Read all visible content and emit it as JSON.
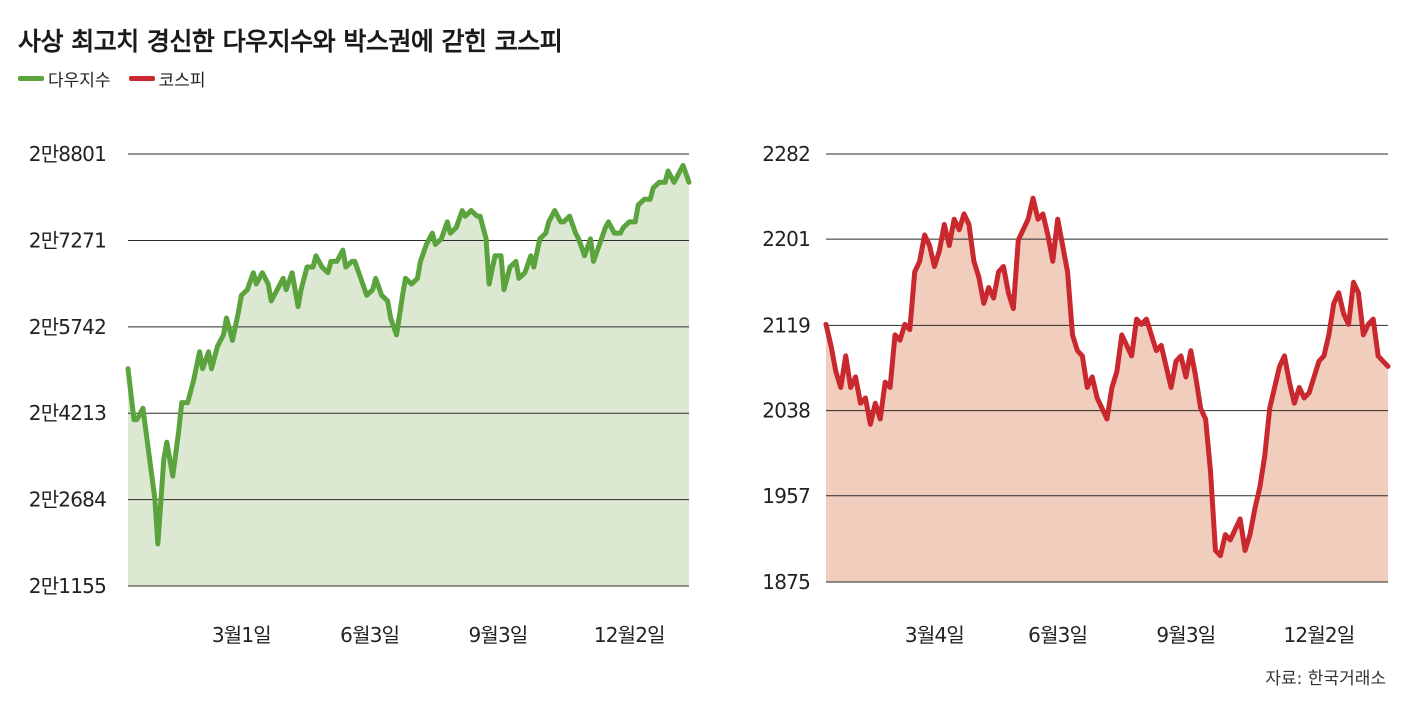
{
  "title": "사상 최고치 경신한 다우지수와 박스권에 갇힌 코스피",
  "legend": [
    {
      "label": "다우지수",
      "color": "#5aa33d"
    },
    {
      "label": "코스피",
      "color": "#c8282e"
    }
  ],
  "source": "자료: 한국거래소",
  "chart_data": [
    {
      "type": "area",
      "series": [
        {
          "name": "다우지수",
          "color": "#5aa33d",
          "fill": "#dde8d3",
          "values": [
            25000,
            24100,
            24100,
            24300,
            23500,
            22700,
            21900,
            23400,
            23700,
            23100,
            23900,
            24400,
            24400,
            24800,
            25300,
            25000,
            25300,
            25000,
            25400,
            25600,
            25900,
            25500,
            26000,
            26300,
            26400,
            26700,
            26500,
            26700,
            26500,
            26200,
            26400,
            26600,
            26400,
            26700,
            26100,
            26400,
            26800,
            26800,
            27000,
            26800,
            26700,
            26900,
            26900,
            27100,
            26800,
            26900,
            26900,
            26600,
            26300,
            26400,
            26600,
            26300,
            26200,
            25900,
            25600,
            26300,
            26600,
            26500,
            26600,
            26900,
            27200,
            27400,
            27200,
            27300,
            27600,
            27400,
            27500,
            27800,
            27700,
            27800,
            27700,
            27700,
            27300,
            26500,
            27000,
            27000,
            26400,
            26800,
            26900,
            26600,
            26700,
            27000,
            26800,
            27300,
            27400,
            27600,
            27800,
            27600,
            27600,
            27700,
            27400,
            27300,
            27000,
            27300,
            26900,
            27200,
            27500,
            27600,
            27400,
            27400,
            27500,
            27600,
            27600,
            27900,
            28000,
            28000,
            28200,
            28300,
            28300,
            28500,
            28300,
            28500,
            28600,
            28300
          ],
          "x": [
            0,
            2,
            3,
            5,
            7,
            9,
            10,
            12,
            13,
            15,
            17,
            18,
            20,
            22,
            24,
            25,
            27,
            28,
            30,
            32,
            33,
            35,
            37,
            38,
            40,
            42,
            43,
            45,
            47,
            48,
            50,
            52,
            53,
            55,
            57,
            58,
            60,
            62,
            63,
            65,
            67,
            68,
            70,
            72,
            73,
            75,
            76,
            78,
            80,
            82,
            83,
            85,
            87,
            88,
            90,
            92,
            93,
            95,
            97,
            98,
            100,
            102,
            103,
            105,
            107,
            108,
            110,
            112,
            113,
            115,
            117,
            118,
            120,
            121,
            123,
            125,
            126,
            128,
            130,
            131,
            133,
            135,
            136,
            138,
            140,
            141,
            143,
            145,
            146,
            148,
            150,
            151,
            153,
            155,
            156,
            158,
            160,
            161,
            163,
            165,
            166,
            168,
            170,
            171,
            173,
            175,
            176,
            178,
            180,
            181,
            183,
            185,
            186,
            188
          ]
        }
      ],
      "y_ticks": [
        "2만8801",
        "2만7271",
        "2만5742",
        "2만4213",
        "2만2684",
        "2만1155"
      ],
      "y_values": [
        28801,
        27271,
        25742,
        24213,
        22684,
        21155
      ],
      "ylim": [
        21155,
        28801
      ],
      "x_ticks": [
        "3월1일",
        "6월3일",
        "9월3일",
        "12월2일"
      ],
      "x_tick_positions": [
        38,
        81,
        124,
        168
      ],
      "xlim": [
        0,
        188
      ],
      "grid": true
    },
    {
      "type": "area",
      "series": [
        {
          "name": "코스피",
          "color": "#c8282e",
          "fill": "#f1cdbe",
          "values": [
            2120,
            2100,
            2075,
            2060,
            2090,
            2060,
            2070,
            2045,
            2050,
            2025,
            2045,
            2030,
            2065,
            2060,
            2110,
            2105,
            2120,
            2115,
            2170,
            2180,
            2205,
            2195,
            2175,
            2190,
            2215,
            2195,
            2220,
            2210,
            2225,
            2215,
            2180,
            2165,
            2140,
            2155,
            2145,
            2170,
            2175,
            2150,
            2135,
            2200,
            2210,
            2220,
            2240,
            2220,
            2225,
            2205,
            2180,
            2220,
            2195,
            2170,
            2110,
            2095,
            2090,
            2060,
            2070,
            2050,
            2040,
            2030,
            2060,
            2075,
            2110,
            2100,
            2090,
            2125,
            2120,
            2125,
            2110,
            2095,
            2100,
            2080,
            2060,
            2085,
            2090,
            2070,
            2095,
            2070,
            2040,
            2030,
            1980,
            1905,
            1900,
            1920,
            1915,
            1925,
            1935,
            1905,
            1920,
            1945,
            1965,
            1995,
            2040,
            2060,
            2080,
            2090,
            2065,
            2045,
            2060,
            2050,
            2055,
            2070,
            2085,
            2090,
            2110,
            2140,
            2150,
            2130,
            2120,
            2160,
            2150,
            2110,
            2120,
            2125,
            2090,
            2085,
            2080
          ],
          "x": [
            0,
            1,
            2,
            3,
            4,
            5,
            6,
            7,
            8,
            9,
            10,
            11,
            12,
            13,
            14,
            15,
            16,
            17,
            18,
            19,
            20,
            21,
            22,
            23,
            24,
            25,
            26,
            27,
            28,
            29,
            30,
            31,
            32,
            33,
            34,
            35,
            36,
            37,
            38,
            39,
            40,
            41,
            42,
            43,
            44,
            45,
            46,
            47,
            48,
            49,
            50,
            51,
            52,
            53,
            54,
            55,
            56,
            57,
            58,
            59,
            60,
            61,
            62,
            63,
            64,
            65,
            66,
            67,
            68,
            69,
            70,
            71,
            72,
            73,
            74,
            75,
            76,
            77,
            78,
            79,
            80,
            81,
            82,
            83,
            84,
            85,
            86,
            87,
            88,
            89,
            90,
            91,
            92,
            93,
            94,
            95,
            96,
            97,
            98,
            99,
            100,
            101,
            102,
            103,
            104,
            105,
            106,
            107,
            108,
            109,
            110,
            111,
            112,
            113,
            114
          ]
        }
      ],
      "y_ticks": [
        "2282",
        "2201",
        "2119",
        "2038",
        "1957",
        "1875"
      ],
      "y_values": [
        2282,
        2201,
        2119,
        2038,
        1957,
        1875
      ],
      "ylim": [
        1875,
        2282
      ],
      "x_ticks": [
        "3월4일",
        "6월3일",
        "9월3일",
        "12월2일"
      ],
      "x_tick_positions": [
        22,
        47,
        73,
        100
      ],
      "xlim": [
        0,
        114
      ],
      "grid": true
    }
  ]
}
